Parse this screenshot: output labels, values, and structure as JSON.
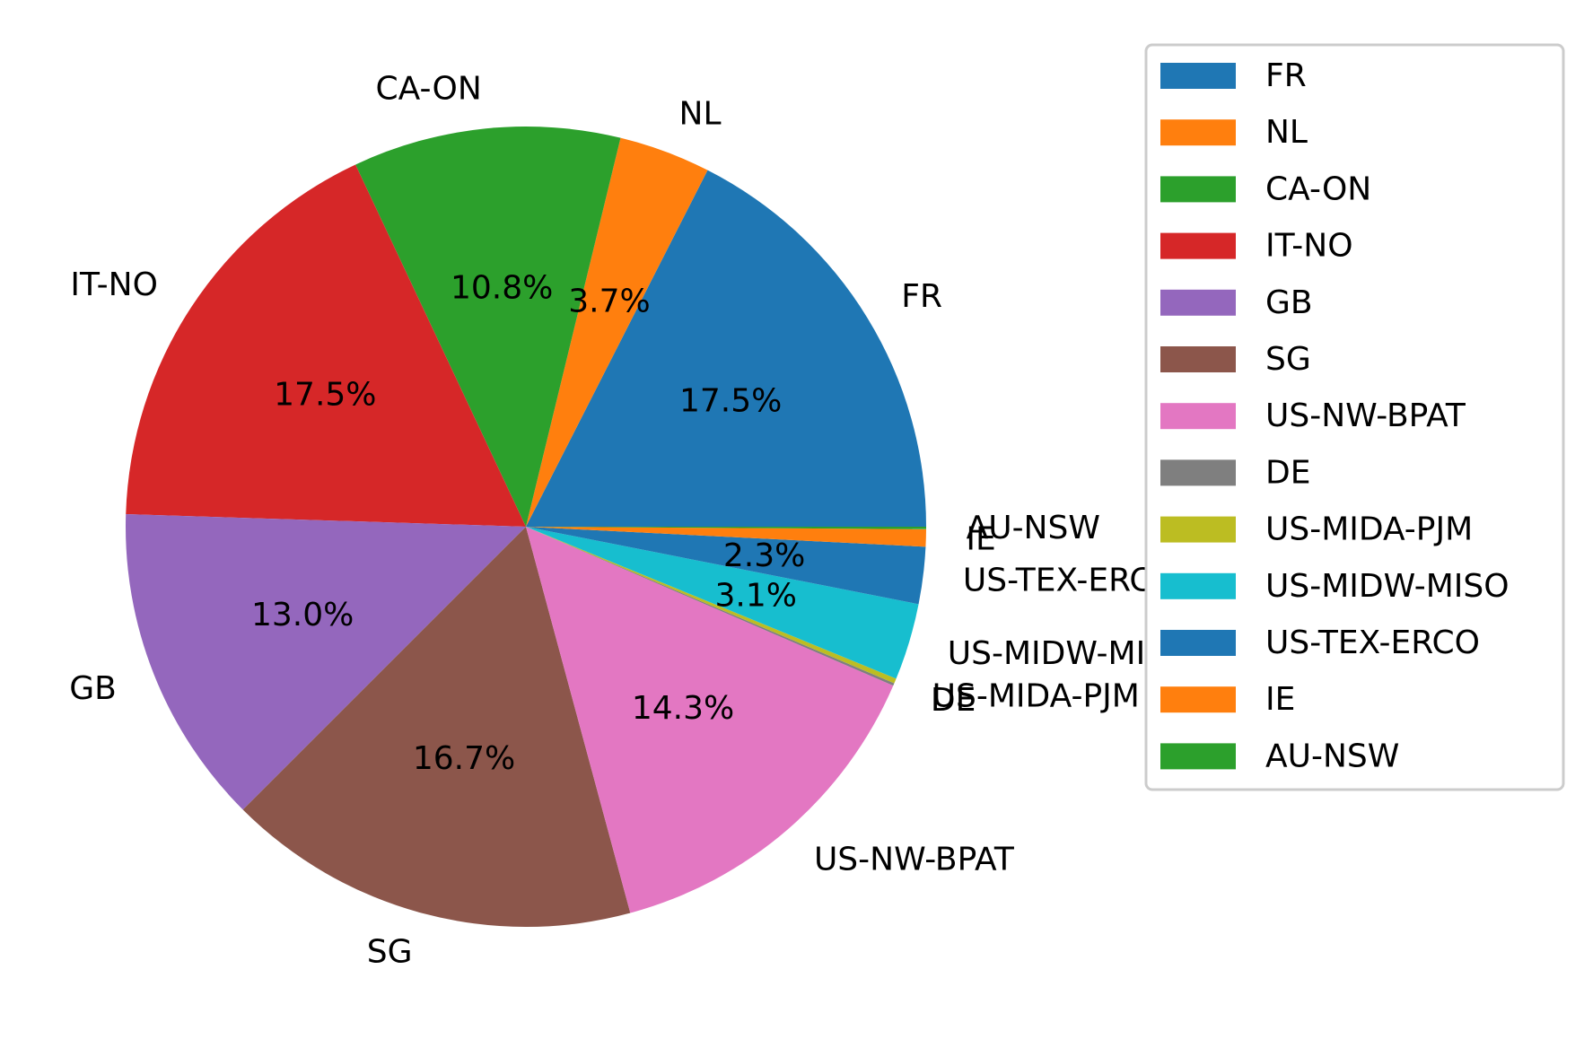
{
  "chart_data": {
    "type": "pie",
    "title": "",
    "start_angle": 0,
    "direction": "counterclockwise",
    "legend_position": "upper-right, outside plot",
    "slices": [
      {
        "label": "FR",
        "value": 17.5,
        "pct_label": "17.5%",
        "color": "#1f77b4"
      },
      {
        "label": "NL",
        "value": 3.7,
        "pct_label": "3.7%",
        "color": "#ff7f0e"
      },
      {
        "label": "CA-ON",
        "value": 10.8,
        "pct_label": "10.8%",
        "color": "#2ca02c"
      },
      {
        "label": "IT-NO",
        "value": 17.5,
        "pct_label": "17.5%",
        "color": "#d62728"
      },
      {
        "label": "GB",
        "value": 13.0,
        "pct_label": "13.0%",
        "color": "#9467bd"
      },
      {
        "label": "SG",
        "value": 16.7,
        "pct_label": "16.7%",
        "color": "#8c564b"
      },
      {
        "label": "US-NW-BPAT",
        "value": 14.3,
        "pct_label": "14.3%",
        "color": "#e377c2"
      },
      {
        "label": "DE",
        "value": 0.1,
        "pct_label": "",
        "color": "#7f7f7f"
      },
      {
        "label": "US-MIDA-PJM",
        "value": 0.2,
        "pct_label": "",
        "color": "#bcbd22"
      },
      {
        "label": "US-MIDW-MISO",
        "value": 3.1,
        "pct_label": "3.1%",
        "color": "#17becf"
      },
      {
        "label": "US-TEX-ERCO",
        "value": 2.3,
        "pct_label": "2.3%",
        "color": "#1f77b4"
      },
      {
        "label": "IE",
        "value": 0.7,
        "pct_label": "",
        "color": "#ff7f0e"
      },
      {
        "label": "AU-NSW",
        "value": 0.1,
        "pct_label": "",
        "color": "#2ca02c"
      }
    ]
  }
}
